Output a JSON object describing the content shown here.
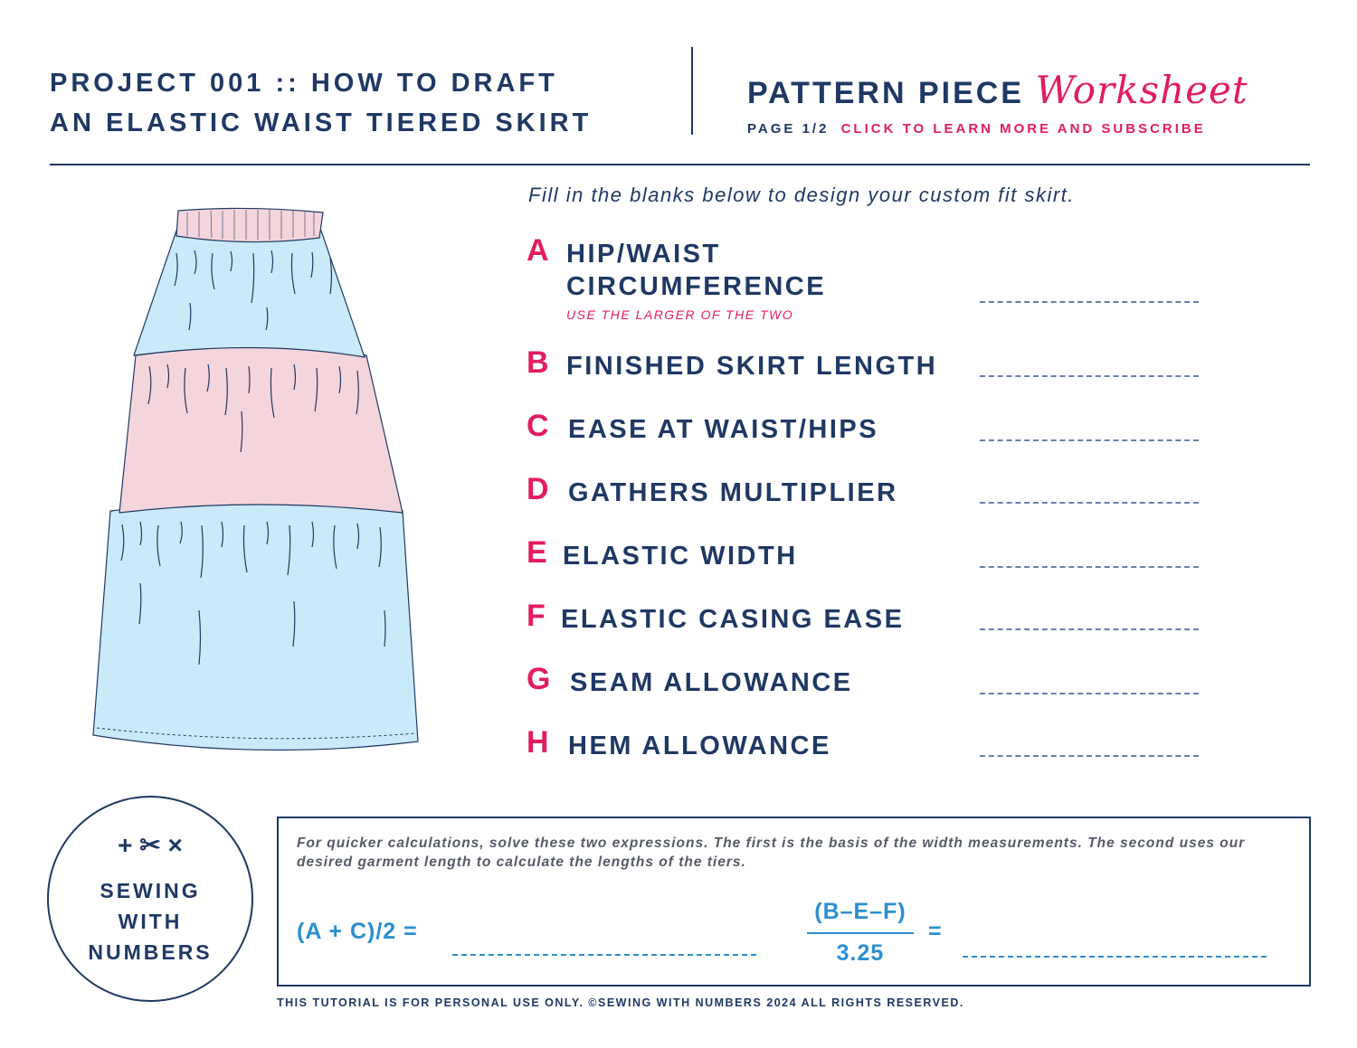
{
  "header": {
    "project_line1": "PROJECT 001 :: HOW TO DRAFT",
    "project_line2": "AN ELASTIC WAIST TIERED SKIRT",
    "worksheet_title": "PATTERN PIECE",
    "worksheet_script": "Worksheet",
    "page_label": "PAGE 1/2",
    "subscribe_link": "CLICK TO LEARN MORE AND SUBSCRIBE"
  },
  "intro": "Fill in the blanks below to design your custom fit skirt.",
  "fields": [
    {
      "letter": "A",
      "label_line1": "HIP/WAIST",
      "label_line2": "CIRCUMFERENCE",
      "note": "USE THE LARGER OF THE TWO"
    },
    {
      "letter": "B",
      "label": "FINISHED SKIRT LENGTH"
    },
    {
      "letter": "C",
      "label": "EASE AT WAIST/HIPS"
    },
    {
      "letter": "D",
      "label": "GATHERS MULTIPLIER"
    },
    {
      "letter": "E",
      "label": "ELASTIC WIDTH"
    },
    {
      "letter": "F",
      "label": "ELASTIC CASING EASE"
    },
    {
      "letter": "G",
      "label": "SEAM ALLOWANCE"
    },
    {
      "letter": "H",
      "label": "HEM ALLOWANCE"
    }
  ],
  "logo": {
    "symbols": "+ ✂ ×",
    "line1": "SEWING",
    "line2": "WITH",
    "line3": "NUMBERS"
  },
  "calculations": {
    "instructions": "For quicker calculations, solve these two expressions. The first is the basis of the width measurements. The second uses our desired garment length to calculate the lengths of the tiers.",
    "expr1": "(A + C)/2 =",
    "expr2_numerator": "(B–E–F)",
    "expr2_denominator": "3.25",
    "expr2_equals": "="
  },
  "footer": "THIS TUTORIAL IS FOR PERSONAL USE ONLY. ©SEWING WITH NUMBERS 2024 ALL RIGHTS RESERVED.",
  "colors": {
    "navy": "#1f3864",
    "pink": "#e21d5e",
    "blue": "#2b8fd0",
    "skirt_blue": "#c9ebf9",
    "skirt_pink": "#f5d5dc"
  }
}
